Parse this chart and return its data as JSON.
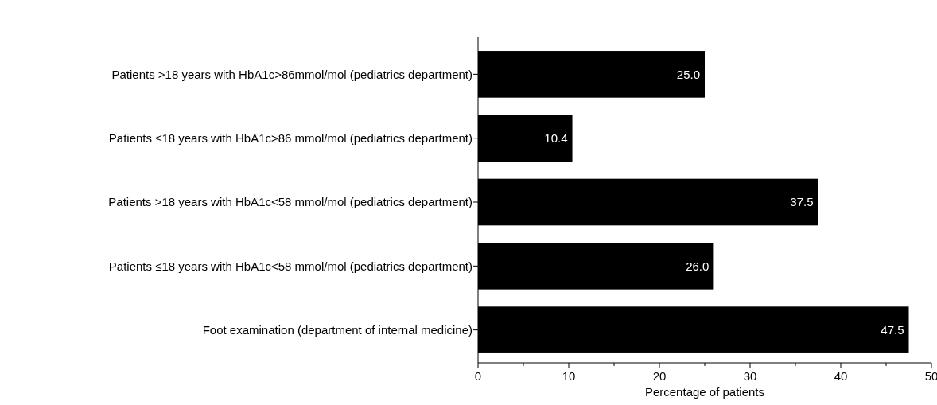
{
  "chart_data": {
    "type": "bar",
    "orientation": "horizontal",
    "xlabel": "Percentage of patients",
    "categories": [
      "Patients >18 years with HbA1c>86mmol/mol (pediatrics department)",
      "Patients ≤18 years with HbA1c>86 mmol/mol (pediatrics department)",
      "Patients >18 years with HbA1c<58 mmol/mol (pediatrics department)",
      "Patients ≤18 years with HbA1c<58 mmol/mol (pediatrics department)",
      "Foot examination (department of internal medicine)"
    ],
    "values": [
      25.0,
      10.4,
      37.5,
      26.0,
      47.5
    ],
    "value_labels": [
      "25.0",
      "10.4",
      "37.5",
      "26.0",
      "47.5"
    ],
    "color": "#000000",
    "xlim": [
      0,
      50
    ],
    "xticks": [
      0,
      {
        "value": 5,
        "label": null
      },
      10,
      {
        "value": 15,
        "label": null
      },
      20,
      {
        "value": 25,
        "label": null
      },
      30,
      {
        "value": 35,
        "label": null
      },
      40,
      {
        "value": 45,
        "label": null
      },
      50
    ],
    "grid": false
  }
}
